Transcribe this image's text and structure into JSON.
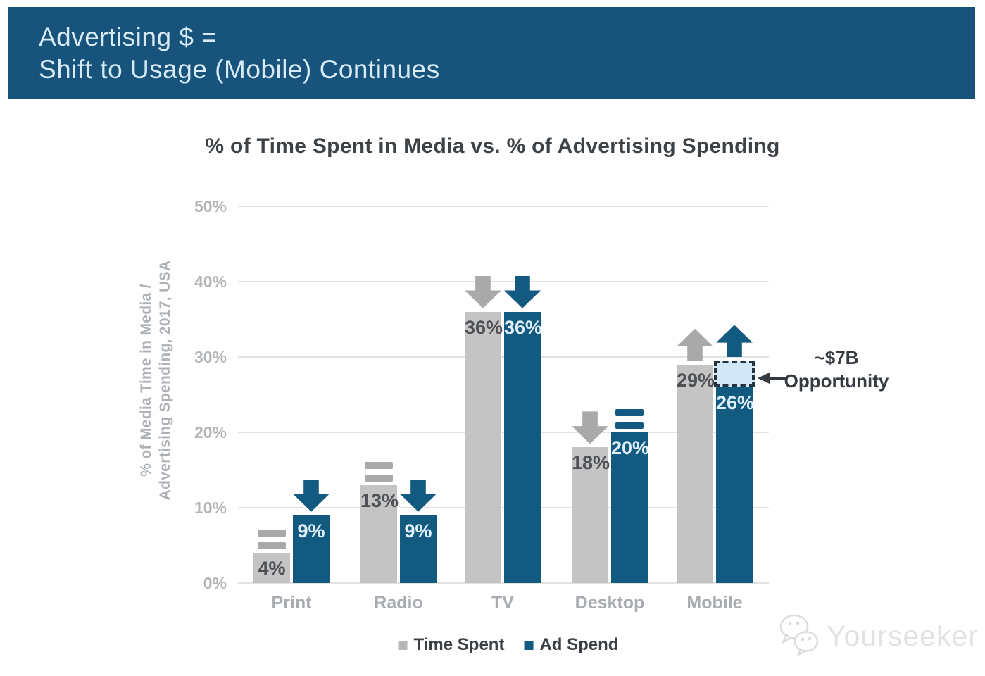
{
  "slide": {
    "banner": {
      "line1": "Advertising $ =",
      "line2": "Shift to Usage (Mobile) Continues",
      "bg_color": "#17537a",
      "text_color": "#d7eaf6"
    }
  },
  "chart_data": {
    "type": "bar",
    "title": "% of Time Spent in Media vs. % of Advertising Spending",
    "ylabel": [
      "% of Media Time in Media /",
      "Advertising Spending, 2017, USA"
    ],
    "categories": [
      "Print",
      "Radio",
      "TV",
      "Desktop",
      "Mobile"
    ],
    "series": [
      {
        "name": "Time Spent",
        "color": "#c4c4c4",
        "value_label_color": "#4d5156",
        "marker_color": "#a9a9a9",
        "values": [
          4,
          13,
          36,
          18,
          29
        ],
        "value_labels": [
          "4%",
          "13%",
          "36%",
          "18%",
          "29%"
        ],
        "trends": [
          "equal",
          "equal",
          "down",
          "down",
          "up"
        ]
      },
      {
        "name": "Ad Spend",
        "color": "#135a80",
        "value_label_color": "#dff0fb",
        "marker_color": "#135a80",
        "values": [
          9,
          9,
          36,
          20,
          26
        ],
        "value_labels": [
          "9%",
          "9%",
          "36%",
          "20%",
          "26%"
        ],
        "trends": [
          "down",
          "down",
          "down",
          "equal",
          "up"
        ]
      }
    ],
    "ylim": [
      0,
      50
    ],
    "yticks": [
      "0%",
      "10%",
      "20%",
      "30%",
      "40%",
      "50%"
    ],
    "grid": true,
    "legend_position": "bottom",
    "annotation": {
      "line1": "~$7B",
      "line2": "Opportunity",
      "arrow_color": "#363b41",
      "points_to": "Mobile Ad Spend gap"
    },
    "opportunity_overlay": {
      "category": "Mobile",
      "series": "Ad Spend",
      "from_pct": 26,
      "to_pct": 29.5,
      "fill": "#d2e8f6",
      "border": "#243342"
    }
  },
  "watermark": {
    "text": "Yourseeker",
    "logo": "wechat-bubbles-icon",
    "color": "#e2e2e2"
  }
}
